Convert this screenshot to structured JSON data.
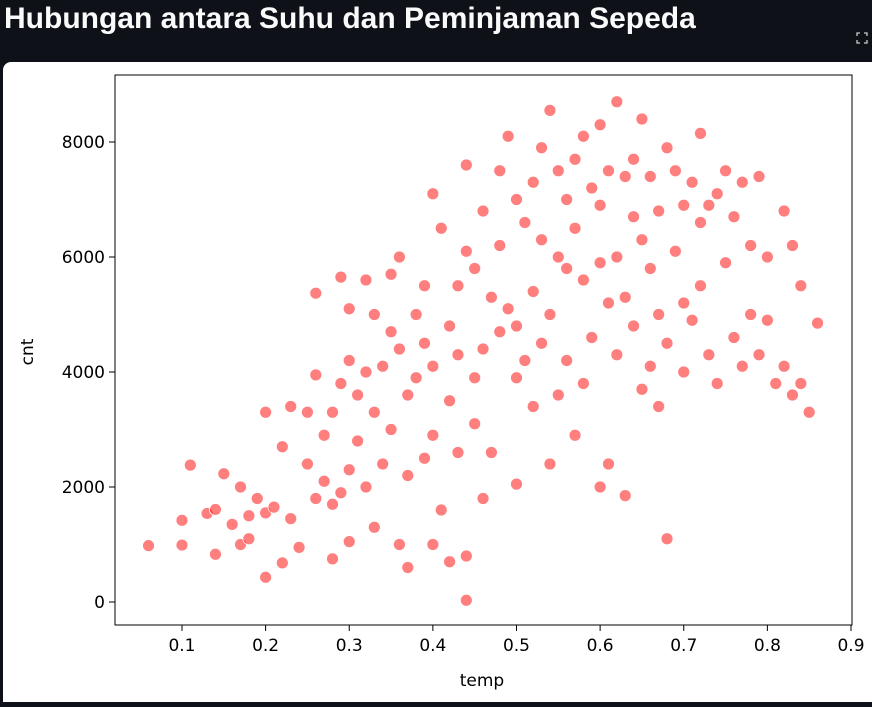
{
  "chart_data": {
    "type": "scatter",
    "title": "Hubungan antara Suhu dan Peminjaman Sepeda",
    "xlabel": "temp",
    "ylabel": "cnt",
    "color": "#ff0000",
    "x": [
      0.06,
      0.1,
      0.1,
      0.11,
      0.13,
      0.14,
      0.14,
      0.15,
      0.16,
      0.17,
      0.17,
      0.18,
      0.18,
      0.19,
      0.2,
      0.2,
      0.2,
      0.21,
      0.22,
      0.22,
      0.23,
      0.23,
      0.24,
      0.25,
      0.25,
      0.26,
      0.26,
      0.26,
      0.27,
      0.27,
      0.28,
      0.28,
      0.28,
      0.29,
      0.29,
      0.29,
      0.3,
      0.3,
      0.3,
      0.3,
      0.31,
      0.31,
      0.32,
      0.32,
      0.32,
      0.33,
      0.33,
      0.33,
      0.34,
      0.34,
      0.35,
      0.35,
      0.35,
      0.36,
      0.36,
      0.36,
      0.37,
      0.37,
      0.37,
      0.38,
      0.38,
      0.39,
      0.39,
      0.39,
      0.4,
      0.4,
      0.4,
      0.4,
      0.41,
      0.41,
      0.42,
      0.42,
      0.42,
      0.43,
      0.43,
      0.43,
      0.44,
      0.44,
      0.44,
      0.44,
      0.45,
      0.45,
      0.45,
      0.46,
      0.46,
      0.46,
      0.47,
      0.47,
      0.48,
      0.48,
      0.48,
      0.49,
      0.49,
      0.5,
      0.5,
      0.5,
      0.5,
      0.51,
      0.51,
      0.52,
      0.52,
      0.52,
      0.53,
      0.53,
      0.53,
      0.54,
      0.54,
      0.54,
      0.55,
      0.55,
      0.55,
      0.56,
      0.56,
      0.56,
      0.57,
      0.57,
      0.57,
      0.58,
      0.58,
      0.58,
      0.59,
      0.59,
      0.6,
      0.6,
      0.6,
      0.6,
      0.61,
      0.61,
      0.61,
      0.62,
      0.62,
      0.62,
      0.63,
      0.63,
      0.63,
      0.64,
      0.64,
      0.64,
      0.65,
      0.65,
      0.65,
      0.66,
      0.66,
      0.66,
      0.67,
      0.67,
      0.67,
      0.68,
      0.68,
      0.68,
      0.69,
      0.69,
      0.7,
      0.7,
      0.7,
      0.71,
      0.71,
      0.72,
      0.72,
      0.72,
      0.73,
      0.73,
      0.74,
      0.74,
      0.75,
      0.75,
      0.76,
      0.76,
      0.77,
      0.77,
      0.78,
      0.78,
      0.79,
      0.79,
      0.8,
      0.8,
      0.81,
      0.82,
      0.82,
      0.83,
      0.83,
      0.84,
      0.84,
      0.85,
      0.86
    ],
    "values": [
      980,
      990,
      1420,
      2380,
      1540,
      830,
      1610,
      2230,
      1350,
      1000,
      2000,
      1100,
      1500,
      1800,
      1550,
      3300,
      430,
      1650,
      2700,
      680,
      1450,
      3400,
      950,
      2400,
      3300,
      1800,
      5370,
      3950,
      2100,
      2900,
      1700,
      3300,
      750,
      5650,
      3800,
      1900,
      2300,
      5100,
      4200,
      1050,
      3600,
      2800,
      5600,
      4000,
      2000,
      5000,
      3300,
      1300,
      2400,
      4100,
      4700,
      5700,
      3000,
      1000,
      6000,
      4400,
      2200,
      600,
      3600,
      5000,
      3900,
      4500,
      2500,
      5500,
      7100,
      4100,
      2900,
      1000,
      6500,
      1600,
      4800,
      3500,
      700,
      5500,
      4300,
      2600,
      7600,
      6100,
      30,
      800,
      5800,
      3900,
      3100,
      6800,
      4400,
      1800,
      5300,
      2600,
      7500,
      6200,
      4700,
      8100,
      5100,
      7000,
      4800,
      3900,
      2050,
      6600,
      4200,
      7300,
      5400,
      3400,
      7900,
      6300,
      4500,
      8550,
      5000,
      2400,
      7500,
      6000,
      3600,
      7000,
      5800,
      4200,
      7700,
      6500,
      2900,
      8100,
      5600,
      3800,
      7200,
      4600,
      8300,
      6900,
      5900,
      2000,
      7500,
      5200,
      2400,
      8700,
      6000,
      4300,
      7400,
      5300,
      1850,
      7700,
      6700,
      4800,
      8400,
      6300,
      3700,
      7400,
      5800,
      4100,
      6800,
      5000,
      3400,
      7900,
      1100,
      4500,
      6100,
      7500,
      5200,
      6900,
      4000,
      7300,
      4900,
      8150,
      6600,
      5500,
      6900,
      4300,
      7100,
      3800,
      7500,
      5900,
      4600,
      6700,
      7300,
      4100,
      6200,
      5000,
      7400,
      4300,
      6000,
      4900,
      3800,
      6800,
      4100,
      6200,
      3600,
      5500,
      3800,
      3300,
      4850
    ],
    "xlim": [
      0.0199,
      0.9012
    ],
    "ylim": [
      -400,
      9165
    ],
    "xticks": [
      0.1,
      0.2,
      0.3,
      0.4,
      0.5,
      0.6,
      0.7,
      0.8,
      0.9
    ],
    "yticks": [
      0,
      2000,
      4000,
      6000,
      8000
    ]
  }
}
